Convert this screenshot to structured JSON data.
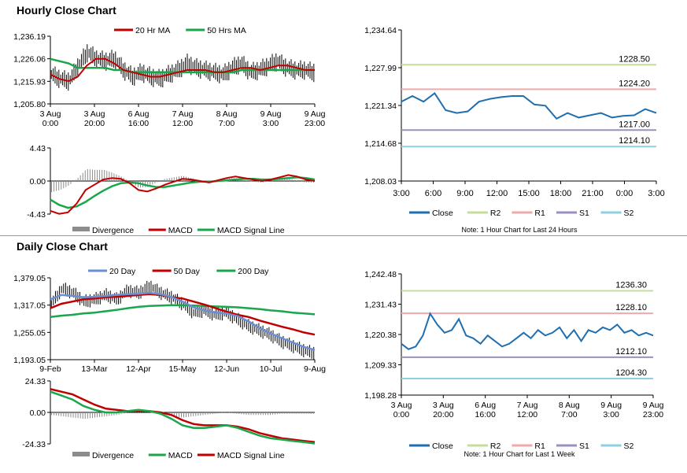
{
  "sections": {
    "hourly_title": "Hourly Close Chart",
    "daily_title": "Daily Close Chart"
  },
  "colors": {
    "price": "#000000",
    "ma_short": "#c00000",
    "ma_long": "#1aa64a",
    "ma_day20": "#6b8fd0",
    "close_line": "#1f6fb0",
    "r2": "#c5dc9c",
    "r1": "#eeaaaa",
    "s1": "#9c8fc0",
    "s2": "#8fd0e0",
    "divergence": "#8c8c8c",
    "axis": "#000000"
  },
  "chart_data": [
    {
      "id": "hourly_price",
      "type": "line",
      "legend": [
        "20 Hr MA",
        "50 Hrs MA"
      ],
      "y_ticks": [
        "1,236.19",
        "1,226.06",
        "1,215.93",
        "1,205.80"
      ],
      "ylim": [
        1205.8,
        1236.19
      ],
      "x_ticks": [
        [
          "3 Aug",
          "0:00"
        ],
        [
          "3 Aug",
          "20:00"
        ],
        [
          "6 Aug",
          "16:00"
        ],
        [
          "7 Aug",
          "12:00"
        ],
        [
          "8 Aug",
          "7:00"
        ],
        [
          "9 Aug",
          "3:00"
        ],
        [
          "9 Aug",
          "23:00"
        ]
      ],
      "price_anchors": [
        1219,
        1217,
        1216,
        1223,
        1229,
        1226,
        1225,
        1226,
        1221,
        1218,
        1220,
        1218,
        1217,
        1219,
        1221,
        1224,
        1222,
        1221,
        1220,
        1219,
        1222,
        1224,
        1220,
        1221,
        1223,
        1225,
        1222,
        1221,
        1221,
        1220
      ],
      "series": [
        {
          "name": "20 Hr MA",
          "values": [
            1219,
            1217,
            1216,
            1218,
            1223,
            1226,
            1226,
            1224,
            1221,
            1220,
            1219,
            1218,
            1218,
            1219,
            1220,
            1221,
            1221,
            1221,
            1220,
            1220,
            1221,
            1222,
            1222,
            1221,
            1222,
            1223,
            1223,
            1222,
            1221,
            1221
          ]
        },
        {
          "name": "50 Hrs MA",
          "values": [
            1226,
            1225,
            1224,
            1222,
            1222,
            1222,
            1222,
            1221,
            1221,
            1220,
            1220,
            1220,
            1220,
            1220,
            1220,
            1220,
            1220,
            1220,
            1220,
            1220,
            1220,
            1221,
            1221,
            1221,
            1221,
            1221,
            1221,
            1221,
            1221,
            1221
          ]
        }
      ]
    },
    {
      "id": "hourly_macd",
      "type": "line",
      "legend": [
        "Divergence",
        "MACD",
        "MACD Signal Line"
      ],
      "y_ticks": [
        "4.43",
        "0.00",
        "-4.43"
      ],
      "ylim": [
        -4.43,
        4.43
      ],
      "series": [
        {
          "name": "MACD",
          "values": [
            -4.0,
            -4.4,
            -4.2,
            -3.0,
            -1.2,
            -0.5,
            0.2,
            0.4,
            0.3,
            -0.3,
            -1.2,
            -1.4,
            -1.0,
            -0.5,
            -0.1,
            0.3,
            0.2,
            0.0,
            -0.2,
            0.1,
            0.4,
            0.6,
            0.4,
            0.2,
            0.0,
            0.2,
            0.5,
            0.8,
            0.6,
            0.2,
            0.0
          ]
        },
        {
          "name": "MACD Signal Line",
          "values": [
            -2.5,
            -3.2,
            -3.6,
            -3.4,
            -2.8,
            -2.0,
            -1.3,
            -0.7,
            -0.3,
            -0.2,
            -0.3,
            -0.6,
            -0.8,
            -0.8,
            -0.6,
            -0.4,
            -0.2,
            -0.1,
            -0.1,
            0.0,
            0.1,
            0.2,
            0.3,
            0.3,
            0.2,
            0.2,
            0.3,
            0.4,
            0.5,
            0.4,
            0.2
          ]
        }
      ]
    },
    {
      "id": "hourly_close_24h",
      "type": "line",
      "y_ticks": [
        "1,234.64",
        "1,227.99",
        "1,221.34",
        "1,214.68",
        "1,208.03"
      ],
      "ylim": [
        1208.03,
        1234.64
      ],
      "x_ticks": [
        "3:00",
        "6:00",
        "9:00",
        "12:00",
        "15:00",
        "18:00",
        "21:00",
        "0:00",
        "3:00"
      ],
      "levels": [
        {
          "name": "R2",
          "value": 1228.5,
          "label": "1228.50"
        },
        {
          "name": "R1",
          "value": 1224.2,
          "label": "1224.20"
        },
        {
          "name": "S1",
          "value": 1217.0,
          "label": "1217.00"
        },
        {
          "name": "S2",
          "value": 1214.1,
          "label": "1214.10"
        }
      ],
      "series": [
        {
          "name": "Close",
          "values": [
            1222.0,
            1223.0,
            1222.0,
            1223.5,
            1220.5,
            1220.0,
            1220.3,
            1222.0,
            1222.5,
            1222.8,
            1223.0,
            1223.0,
            1221.5,
            1221.3,
            1219.0,
            1220.0,
            1219.2,
            1219.6,
            1220.0,
            1219.2,
            1219.5,
            1219.6,
            1220.7,
            1220.0
          ]
        }
      ],
      "legend": [
        "Close",
        "R2",
        "R1",
        "S1",
        "S2"
      ],
      "note": "Note: 1 Hour Chart for Last 24 Hours"
    },
    {
      "id": "daily_price",
      "type": "line",
      "legend": [
        "20 Day",
        "50 Day",
        "200 Day"
      ],
      "y_ticks": [
        "1,379.05",
        "1,317.05",
        "1,255.05",
        "1,193.05"
      ],
      "ylim": [
        1193.05,
        1379.05
      ],
      "x_ticks": [
        "9-Feb",
        "13-Mar",
        "12-Apr",
        "15-May",
        "12-Jun",
        "10-Jul",
        "9-Aug"
      ],
      "price_anchors": [
        1320,
        1355,
        1345,
        1325,
        1330,
        1340,
        1330,
        1350,
        1345,
        1360,
        1345,
        1335,
        1320,
        1300,
        1305,
        1295,
        1300,
        1285,
        1270,
        1260,
        1250,
        1235,
        1225,
        1215,
        1208
      ],
      "series": [
        {
          "name": "20 Day",
          "values": [
            1330,
            1340,
            1338,
            1335,
            1336,
            1338,
            1340,
            1342,
            1343,
            1345,
            1342,
            1335,
            1325,
            1312,
            1305,
            1300,
            1298,
            1292,
            1280,
            1265,
            1252,
            1242,
            1232,
            1222,
            1215
          ]
        },
        {
          "name": "50 Day",
          "values": [
            1310,
            1320,
            1325,
            1330,
            1332,
            1335,
            1336,
            1338,
            1340,
            1342,
            1340,
            1335,
            1332,
            1325,
            1318,
            1310,
            1302,
            1295,
            1290,
            1282,
            1275,
            1268,
            1262,
            1255,
            1250
          ]
        },
        {
          "name": "200 Day",
          "values": [
            1290,
            1293,
            1295,
            1298,
            1300,
            1303,
            1306,
            1310,
            1313,
            1315,
            1316,
            1317,
            1317,
            1316,
            1315,
            1314,
            1313,
            1312,
            1310,
            1308,
            1305,
            1303,
            1300,
            1298,
            1296
          ]
        }
      ]
    },
    {
      "id": "daily_macd",
      "type": "line",
      "legend": [
        "Divergence",
        "MACD",
        "MACD Signal Line"
      ],
      "y_ticks": [
        "24.33",
        "0.00",
        "-24.33"
      ],
      "ylim": [
        -24.33,
        24.33
      ],
      "series": [
        {
          "name": "MACD",
          "values": [
            16,
            13,
            10,
            5,
            2,
            0,
            0,
            1,
            2,
            1,
            -1,
            -5,
            -10,
            -12,
            -12,
            -11,
            -10,
            -12,
            -15,
            -18,
            -20,
            -21,
            -22,
            -23,
            -24
          ]
        },
        {
          "name": "MACD Signal Line",
          "values": [
            18,
            16,
            14,
            10,
            6,
            3,
            2,
            1,
            1,
            1,
            0,
            -2,
            -6,
            -9,
            -10,
            -10,
            -10,
            -11,
            -13,
            -16,
            -18,
            -20,
            -21,
            -22,
            -23
          ]
        }
      ]
    },
    {
      "id": "daily_close_week",
      "type": "line",
      "y_ticks": [
        "1,242.48",
        "1,231.43",
        "1,220.38",
        "1,209.33",
        "1,198.28"
      ],
      "ylim": [
        1198.28,
        1242.48
      ],
      "x_ticks": [
        [
          "3 Aug",
          "0:00"
        ],
        [
          "3 Aug",
          "20:00"
        ],
        [
          "6 Aug",
          "16:00"
        ],
        [
          "7 Aug",
          "12:00"
        ],
        [
          "8 Aug",
          "7:00"
        ],
        [
          "9 Aug",
          "3:00"
        ],
        [
          "9 Aug",
          "23:00"
        ]
      ],
      "levels": [
        {
          "name": "R2",
          "value": 1236.3,
          "label": "1236.30"
        },
        {
          "name": "R1",
          "value": 1228.1,
          "label": "1228.10"
        },
        {
          "name": "S1",
          "value": 1212.1,
          "label": "1212.10"
        },
        {
          "name": "S2",
          "value": 1204.3,
          "label": "1204.30"
        }
      ],
      "series": [
        {
          "name": "Close",
          "values": [
            1217,
            1215,
            1216,
            1220,
            1228,
            1224,
            1221,
            1222,
            1226,
            1220,
            1219,
            1217,
            1220,
            1218,
            1216,
            1217,
            1219,
            1221,
            1219,
            1222,
            1220,
            1221,
            1223,
            1219,
            1222,
            1218,
            1222,
            1221,
            1223,
            1222,
            1224,
            1221,
            1222,
            1220,
            1221,
            1220
          ]
        }
      ],
      "legend": [
        "Close",
        "R2",
        "R1",
        "S1",
        "S2"
      ],
      "note": "Note: 1 Hour Chart for Last 1 Week"
    }
  ]
}
